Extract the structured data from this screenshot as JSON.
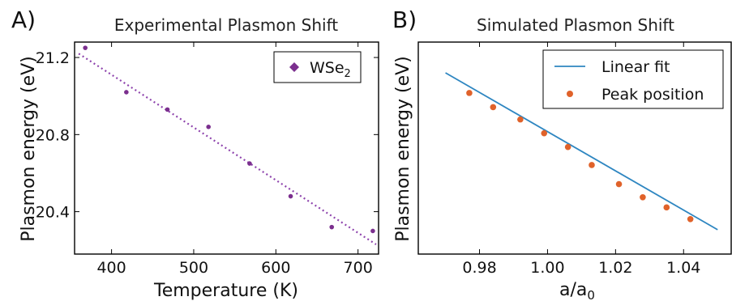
{
  "chart_data": [
    {
      "panel_label": "A)",
      "type": "scatter",
      "title": "Experimental Plasmon Shift",
      "xlabel": "Temperature (K)",
      "ylabel": "Plasmon energy (eV)",
      "xlim": [
        355,
        725
      ],
      "ylim": [
        20.18,
        21.28
      ],
      "xticks": [
        400,
        500,
        600,
        700
      ],
      "yticks": [
        20.4,
        20.8,
        21.2
      ],
      "grid": false,
      "legend_position": "top-right",
      "colors": {
        "points": "#7b2f8e",
        "fit": "#8e44ad"
      },
      "series": [
        {
          "name": "WSe",
          "name_sub": "2",
          "marker": "diamond",
          "x": [
            368,
            418,
            468,
            518,
            568,
            618,
            668,
            718
          ],
          "y": [
            21.25,
            21.02,
            20.93,
            20.84,
            20.65,
            20.48,
            20.32,
            20.3
          ]
        }
      ],
      "fit": {
        "style": "dotted",
        "x": [
          360,
          722
        ],
        "y": [
          21.22,
          20.23
        ]
      }
    },
    {
      "panel_label": "B)",
      "type": "scatter",
      "title": "Simulated Plasmon Shift",
      "xlabel": "a/a",
      "xlabel_sub": "0",
      "ylabel": "Plasmon energy (eV)",
      "xlim": [
        0.962,
        1.054
      ],
      "ylim": [
        0.0,
        1.0
      ],
      "xticks": [
        "0.98",
        "1.00",
        "1.02",
        "1.04"
      ],
      "yticks": [],
      "grid": false,
      "legend_position": "top-right",
      "colors": {
        "points": "#e0622a",
        "fit": "#2e86c1"
      },
      "series": [
        {
          "name": "Linear fit",
          "kind": "line",
          "x": [
            0.97,
            1.05
          ],
          "y": [
            0.855,
            0.115
          ]
        },
        {
          "name": "Peak position",
          "kind": "points",
          "x": [
            0.977,
            0.984,
            0.992,
            0.999,
            1.006,
            1.013,
            1.021,
            1.028,
            1.035,
            1.042
          ],
          "y": [
            0.76,
            0.693,
            0.635,
            0.57,
            0.505,
            0.42,
            0.33,
            0.268,
            0.22,
            0.165
          ]
        }
      ]
    }
  ]
}
